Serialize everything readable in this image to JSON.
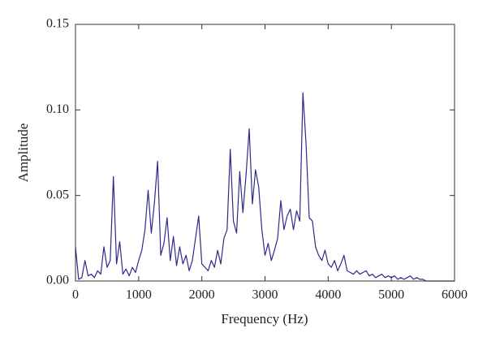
{
  "chart_data": {
    "type": "line",
    "xlabel": "Frequency (Hz)",
    "ylabel": "Amplitude",
    "color": "#2e2a8c",
    "x": [
      0,
      50,
      100,
      150,
      200,
      250,
      300,
      350,
      400,
      450,
      500,
      550,
      600,
      650,
      700,
      750,
      800,
      850,
      900,
      950,
      1000,
      1050,
      1100,
      1150,
      1200,
      1250,
      1300,
      1350,
      1400,
      1450,
      1500,
      1550,
      1600,
      1650,
      1700,
      1750,
      1800,
      1850,
      1900,
      1950,
      2000,
      2050,
      2100,
      2150,
      2200,
      2250,
      2300,
      2350,
      2400,
      2450,
      2500,
      2550,
      2600,
      2650,
      2700,
      2750,
      2800,
      2850,
      2900,
      2950,
      3000,
      3050,
      3100,
      3150,
      3200,
      3250,
      3300,
      3350,
      3400,
      3450,
      3500,
      3550,
      3600,
      3650,
      3700,
      3750,
      3800,
      3850,
      3900,
      3950,
      4000,
      4050,
      4100,
      4150,
      4200,
      4250,
      4300,
      4350,
      4400,
      4450,
      4500,
      4550,
      4600,
      4650,
      4700,
      4750,
      4800,
      4850,
      4900,
      4950,
      5000,
      5050,
      5100,
      5150,
      5200,
      5250,
      5300,
      5350,
      5400,
      5450,
      5500,
      5550,
      5600,
      5650,
      5700,
      5750,
      5800,
      5850,
      5900,
      5950,
      6000
    ],
    "values": [
      0.02,
      0.001,
      0.002,
      0.012,
      0.003,
      0.004,
      0.002,
      0.006,
      0.004,
      0.02,
      0.008,
      0.012,
      0.061,
      0.01,
      0.023,
      0.004,
      0.007,
      0.003,
      0.008,
      0.005,
      0.012,
      0.018,
      0.03,
      0.053,
      0.028,
      0.046,
      0.07,
      0.015,
      0.022,
      0.037,
      0.012,
      0.026,
      0.009,
      0.02,
      0.01,
      0.015,
      0.006,
      0.012,
      0.025,
      0.038,
      0.01,
      0.008,
      0.006,
      0.012,
      0.008,
      0.018,
      0.01,
      0.025,
      0.03,
      0.077,
      0.035,
      0.028,
      0.064,
      0.04,
      0.062,
      0.089,
      0.045,
      0.065,
      0.055,
      0.03,
      0.015,
      0.022,
      0.012,
      0.018,
      0.025,
      0.047,
      0.03,
      0.038,
      0.042,
      0.03,
      0.041,
      0.035,
      0.11,
      0.08,
      0.037,
      0.035,
      0.02,
      0.015,
      0.012,
      0.018,
      0.01,
      0.008,
      0.012,
      0.006,
      0.01,
      0.015,
      0.006,
      0.005,
      0.004,
      0.006,
      0.004,
      0.005,
      0.006,
      0.003,
      0.004,
      0.002,
      0.003,
      0.004,
      0.002,
      0.003,
      0.002,
      0.003,
      0.001,
      0.002,
      0.001,
      0.002,
      0.003,
      0.001,
      0.002,
      0.001,
      0.001,
      0,
      0,
      0,
      0,
      0,
      0,
      0,
      0,
      0,
      0
    ],
    "xlim": [
      0,
      6000
    ],
    "xticks": [
      0,
      1000,
      2000,
      3000,
      4000,
      5000,
      6000
    ],
    "ylim": [
      0,
      0.15
    ],
    "yticks": [
      {
        "value": 0,
        "label": "0.00"
      },
      {
        "value": 0.05,
        "label": "0.05"
      },
      {
        "value": 0.1,
        "label": "0.10"
      },
      {
        "value": 0.15,
        "label": "0.15"
      }
    ]
  }
}
